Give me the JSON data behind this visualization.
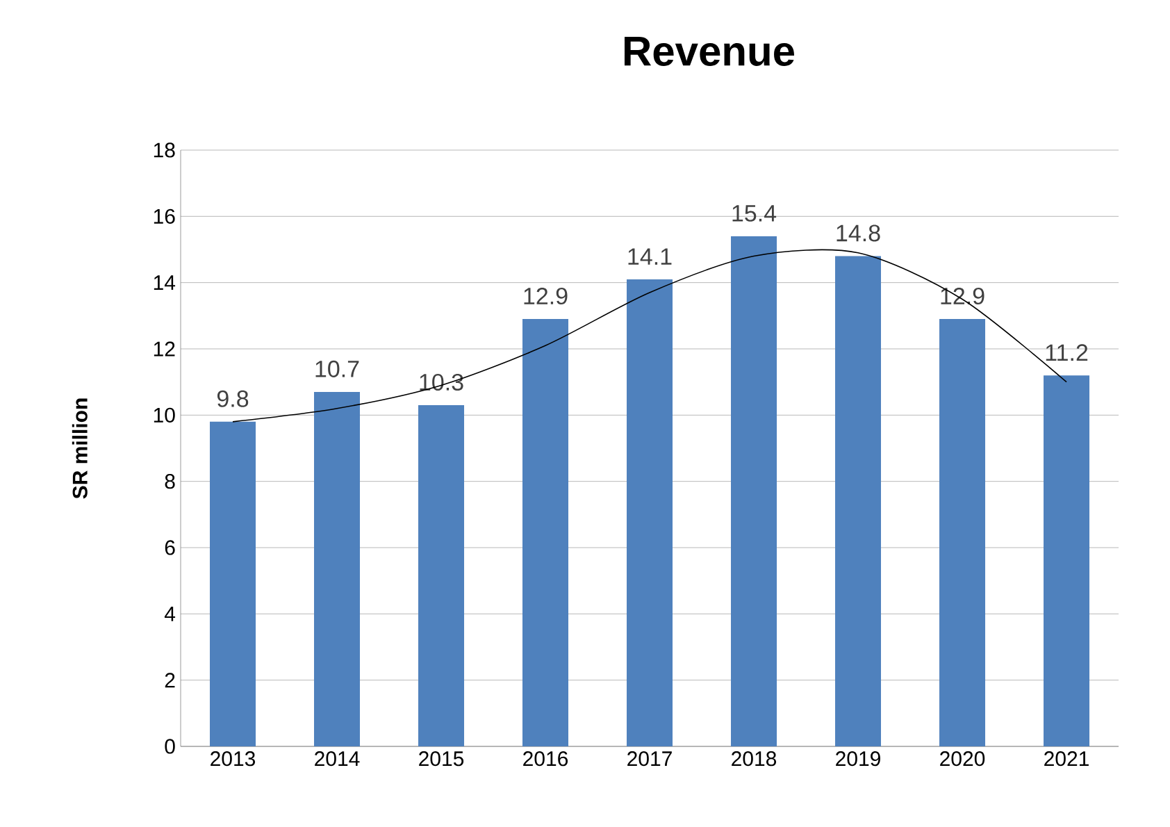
{
  "chart_data": {
    "type": "bar",
    "title": "Revenue",
    "ylabel": "SR million",
    "categories": [
      "2013",
      "2014",
      "2015",
      "2016",
      "2017",
      "2018",
      "2019",
      "2020",
      "2021"
    ],
    "series": [
      {
        "color": "#4f81bd",
        "values": [
          9.8,
          10.7,
          10.3,
          12.9,
          14.1,
          15.4,
          14.8,
          12.9,
          11.2
        ],
        "value_labels": [
          "9.8",
          "10.7",
          "10.3",
          "12.9",
          "14.1",
          "15.4",
          "14.8",
          "12.9",
          "11.2"
        ]
      },
      {
        "type": "line",
        "color": "#000000",
        "values": [
          9.8,
          10.2,
          10.9,
          12.1,
          13.7,
          14.8,
          14.9,
          13.5,
          11.0
        ]
      }
    ],
    "ylim": [
      0,
      18
    ],
    "yticks": [
      0,
      2,
      4,
      6,
      8,
      10,
      12,
      14,
      16,
      18
    ],
    "grid": "y"
  }
}
